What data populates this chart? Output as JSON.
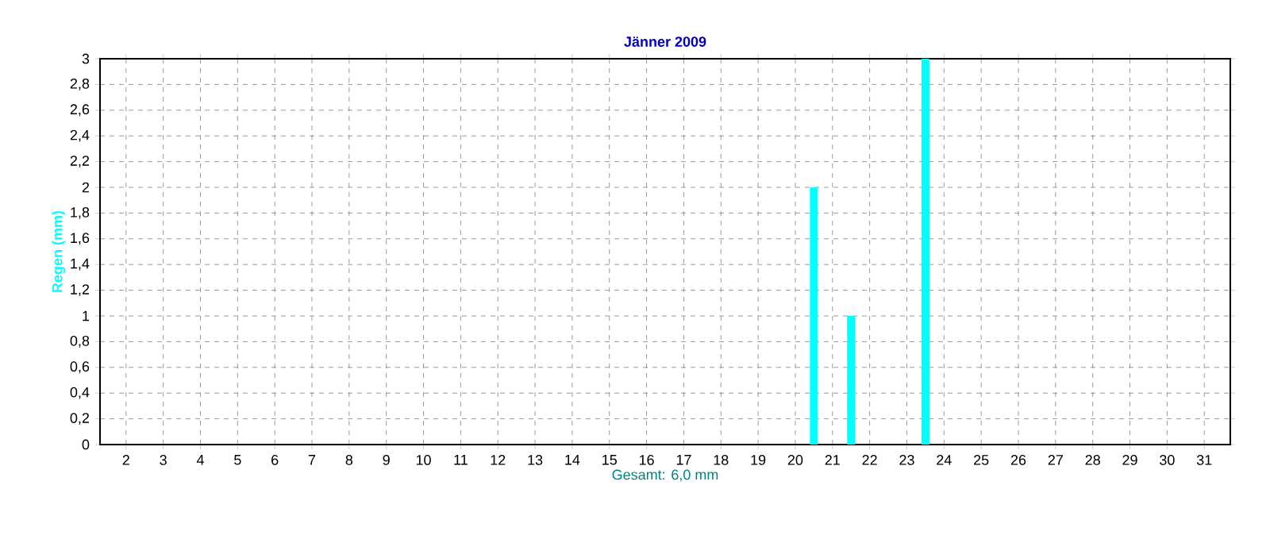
{
  "chart_data": {
    "type": "bar",
    "title": "Jänner 2009",
    "ylabel": "Regen (mm)",
    "xlabel": "Gesamt: 6,0 mm",
    "x": [
      1.5,
      2.5,
      3.5,
      4.5,
      5.5,
      6.5,
      7.5,
      8.5,
      9.5,
      10.5,
      11.5,
      12.5,
      13.5,
      14.5,
      15.5,
      16.5,
      17.5,
      18.5,
      19.5,
      20.5,
      21.5,
      22.5,
      23.5,
      24.5,
      25.5,
      26.5,
      27.5,
      28.5,
      29.5,
      30.5,
      31.5
    ],
    "values": [
      0,
      0,
      0,
      0,
      0,
      0,
      0,
      0,
      0,
      0,
      0,
      0,
      0,
      0,
      0,
      0,
      0,
      0,
      0,
      2,
      1,
      0,
      3,
      0,
      0,
      0,
      0,
      0,
      0,
      0,
      0
    ],
    "color": "#00ffff",
    "xlim": [
      1.3,
      31.7
    ],
    "xticks": [
      2,
      3,
      4,
      5,
      6,
      7,
      8,
      9,
      10,
      11,
      12,
      13,
      14,
      15,
      16,
      17,
      18,
      19,
      20,
      21,
      22,
      23,
      24,
      25,
      26,
      27,
      28,
      29,
      30,
      31
    ],
    "ylim": [
      0,
      3
    ],
    "yticks": [
      0,
      {
        "value": 0.2,
        "label": "0,2"
      },
      {
        "value": 0.4,
        "label": "0,4"
      },
      {
        "value": 0.6,
        "label": "0,6"
      },
      {
        "value": 0.8,
        "label": "0,8"
      },
      1,
      {
        "value": 1.2,
        "label": "1,2"
      },
      {
        "value": 1.4,
        "label": "1,4"
      },
      {
        "value": 1.6,
        "label": "1,6"
      },
      {
        "value": 1.8,
        "label": "1,8"
      },
      2,
      {
        "value": 2.2,
        "label": "2,2"
      },
      {
        "value": 2.4,
        "label": "2,4"
      },
      {
        "value": 2.6,
        "label": "2,6"
      },
      {
        "value": 2.8,
        "label": "2,8"
      },
      3
    ],
    "grid": true
  }
}
